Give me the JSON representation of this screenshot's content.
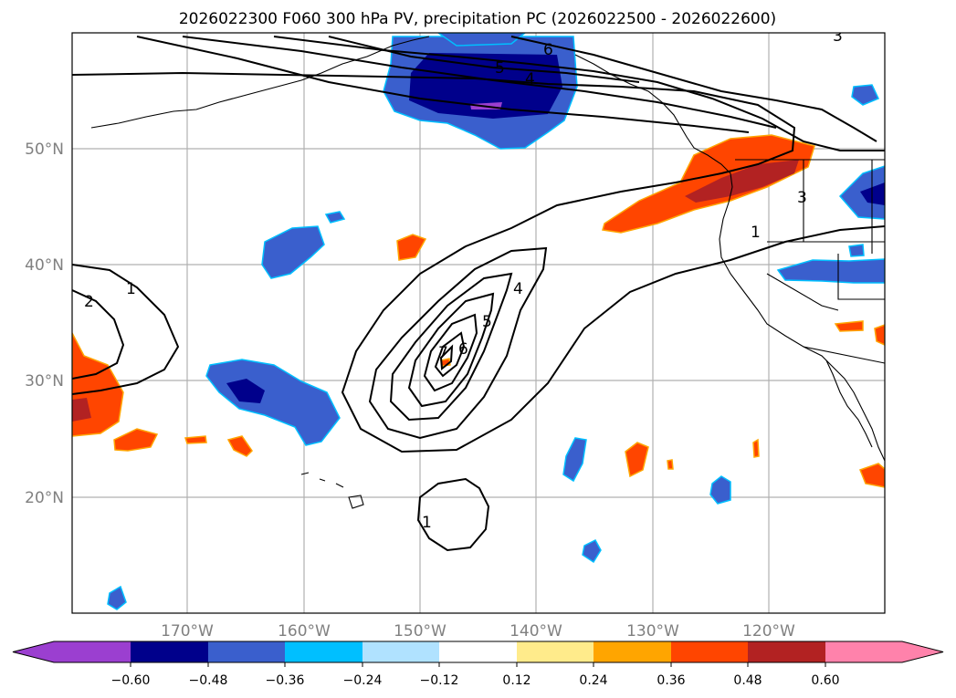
{
  "title": "2026022300 F060 300 hPa PV, precipitation PC (2026022500 - 2026022600)",
  "map": {
    "lat_ticks": [
      "50°N",
      "40°N",
      "30°N",
      "20°N"
    ],
    "lon_ticks": [
      "170°W",
      "160°W",
      "150°W",
      "140°W",
      "130°W",
      "120°W"
    ],
    "pv_contour_labels": [
      "7",
      "6",
      "5",
      "4",
      "1",
      "1",
      "2",
      "1",
      "6",
      "5",
      "4",
      "3",
      "3"
    ]
  },
  "colorbar": {
    "labels": [
      "−0.60",
      "−0.48",
      "−0.36",
      "−0.24",
      "−0.12",
      "0.12",
      "0.24",
      "0.36",
      "0.48",
      "0.60"
    ],
    "colors": [
      "#9b3fd0",
      "#00008b",
      "#3a5fcd",
      "#00bfff",
      "#b0e2ff",
      "#ffffff",
      "#ffeb8b",
      "#ffa500",
      "#ff4500",
      "#b22222",
      "#ff82ab"
    ]
  },
  "chart_data": {
    "type": "map",
    "title": "2026022300 F060 300 hPa PV, precipitation PC (2026022500 - 2026022600)",
    "fields": {
      "contours": "300 hPa PV (black lines), levels 1-7",
      "fill": "precipitation PC (colorbar, -0.60 to 0.60)"
    },
    "lon_range": [
      -180,
      -110
    ],
    "lat_range": [
      10,
      60
    ],
    "colorbar_levels": [
      -0.6,
      -0.48,
      -0.36,
      -0.24,
      -0.12,
      0.12,
      0.24,
      0.36,
      0.48,
      0.6
    ]
  }
}
